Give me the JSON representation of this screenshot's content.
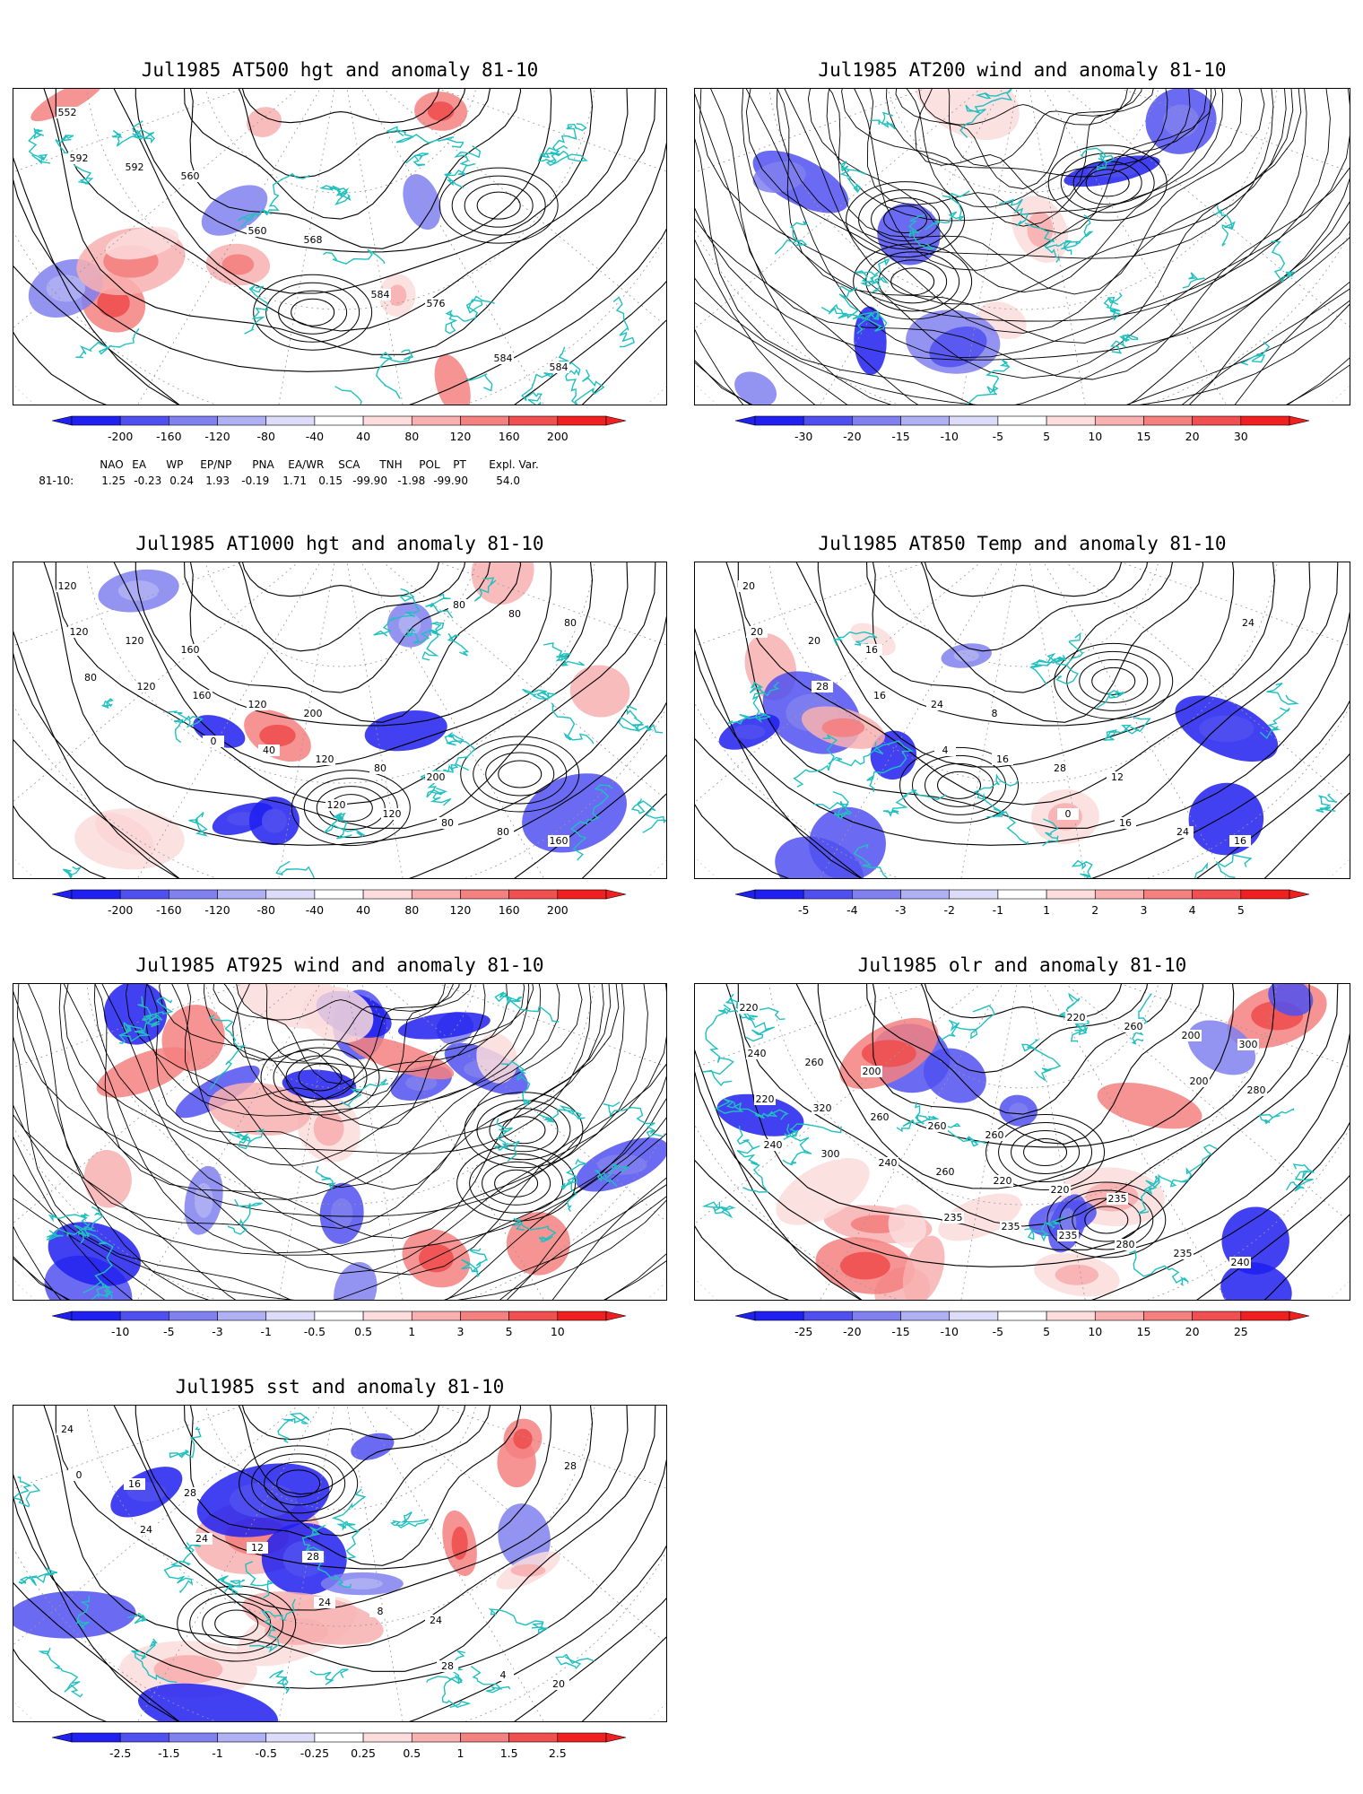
{
  "panels": [
    {
      "id": "p1",
      "title": "Jul1985 AT500 hgt and anomaly 81-10",
      "ticks": [
        "-200",
        "-160",
        "-120",
        "-80",
        "-40",
        "40",
        "80",
        "120",
        "160",
        "200"
      ],
      "contour_labels": [
        "552",
        "560",
        "568",
        "576",
        "584",
        "592",
        "560",
        "584",
        "584",
        "592"
      ],
      "map_variant": "hgt500"
    },
    {
      "id": "p2",
      "title": "Jul1985 AT200 wind and anomaly 81-10",
      "ticks": [
        "-30",
        "-20",
        "-15",
        "-10",
        "-5",
        "5",
        "10",
        "15",
        "20",
        "30"
      ],
      "contour_labels": [],
      "map_variant": "wind200"
    },
    {
      "id": "p3",
      "title": "Jul1985 AT1000 hgt and anomaly 81-10",
      "ticks": [
        "-200",
        "-160",
        "-120",
        "-80",
        "-40",
        "40",
        "80",
        "120",
        "160",
        "200"
      ],
      "contour_labels": [
        "120",
        "160",
        "200",
        "200",
        "160",
        "120",
        "120",
        "80",
        "80",
        "120",
        "160",
        "120",
        "80",
        "80",
        "120",
        "40",
        "120",
        "80",
        "80",
        "0",
        "120",
        "80"
      ],
      "map_variant": "hgt1000"
    },
    {
      "id": "p4",
      "title": "Jul1985 AT850 Temp and anomaly 81-10",
      "ticks": [
        "-5",
        "-4",
        "-3",
        "-2",
        "-1",
        "1",
        "2",
        "3",
        "4",
        "5"
      ],
      "contour_labels": [
        "20",
        "16",
        "8",
        "12",
        "16",
        "20",
        "24",
        "28",
        "24",
        "20",
        "16",
        "16",
        "16",
        "24",
        "28",
        "4",
        "0"
      ],
      "map_variant": "temp850"
    },
    {
      "id": "p5",
      "title": "Jul1985 AT925 wind and anomaly 81-10",
      "ticks": [
        "-10",
        "-5",
        "-3",
        "-1",
        "-0.5",
        "0.5",
        "1",
        "3",
        "5",
        "10"
      ],
      "contour_labels": [],
      "map_variant": "wind925"
    },
    {
      "id": "p6",
      "title": "Jul1985 olr and anomaly 81-10",
      "ticks": [
        "-25",
        "-20",
        "-15",
        "-10",
        "-5",
        "5",
        "10",
        "15",
        "20",
        "25"
      ],
      "contour_labels": [
        "220",
        "200",
        "260",
        "235",
        "240",
        "260",
        "260",
        "220",
        "235",
        "240",
        "260",
        "220",
        "280",
        "300",
        "320",
        "260",
        "235",
        "200",
        "220",
        "240",
        "235",
        "260",
        "280",
        "300",
        "235",
        "220",
        "200",
        "240"
      ],
      "map_variant": "olr"
    },
    {
      "id": "p7",
      "title": "Jul1985 sst and anomaly 81-10",
      "ticks": [
        "-2.5",
        "-1.5",
        "-1",
        "-0.5",
        "-0.25",
        "0.25",
        "0.5",
        "1",
        "1.5",
        "2.5"
      ],
      "contour_labels": [
        "24",
        "28",
        "28",
        "24",
        "20",
        "16",
        "12",
        "8",
        "4",
        "0",
        "24",
        "24",
        "28",
        "28",
        "24"
      ],
      "map_variant": "sst"
    }
  ],
  "indices": {
    "header": [
      "NAO",
      "EA",
      "WP",
      "EP/NP",
      "PNA",
      "EA/WR",
      "SCA",
      "TNH",
      "POL",
      "PT",
      "Expl. Var."
    ],
    "row_label": "81-10:",
    "values": [
      "1.25",
      "-0.23",
      "0.24",
      "1.93",
      "-0.19",
      "1.71",
      "0.15",
      "-99.90",
      "-1.98",
      "-99.90",
      "54.0"
    ]
  },
  "colors": {
    "neg": [
      "#2020f0",
      "#5050f0",
      "#8080f0",
      "#b0b0f4",
      "#dcdcf8"
    ],
    "pos": [
      "#fcdcdc",
      "#f8b0b0",
      "#f48080",
      "#f05050",
      "#f02020"
    ],
    "coast": "#20c0c0"
  }
}
